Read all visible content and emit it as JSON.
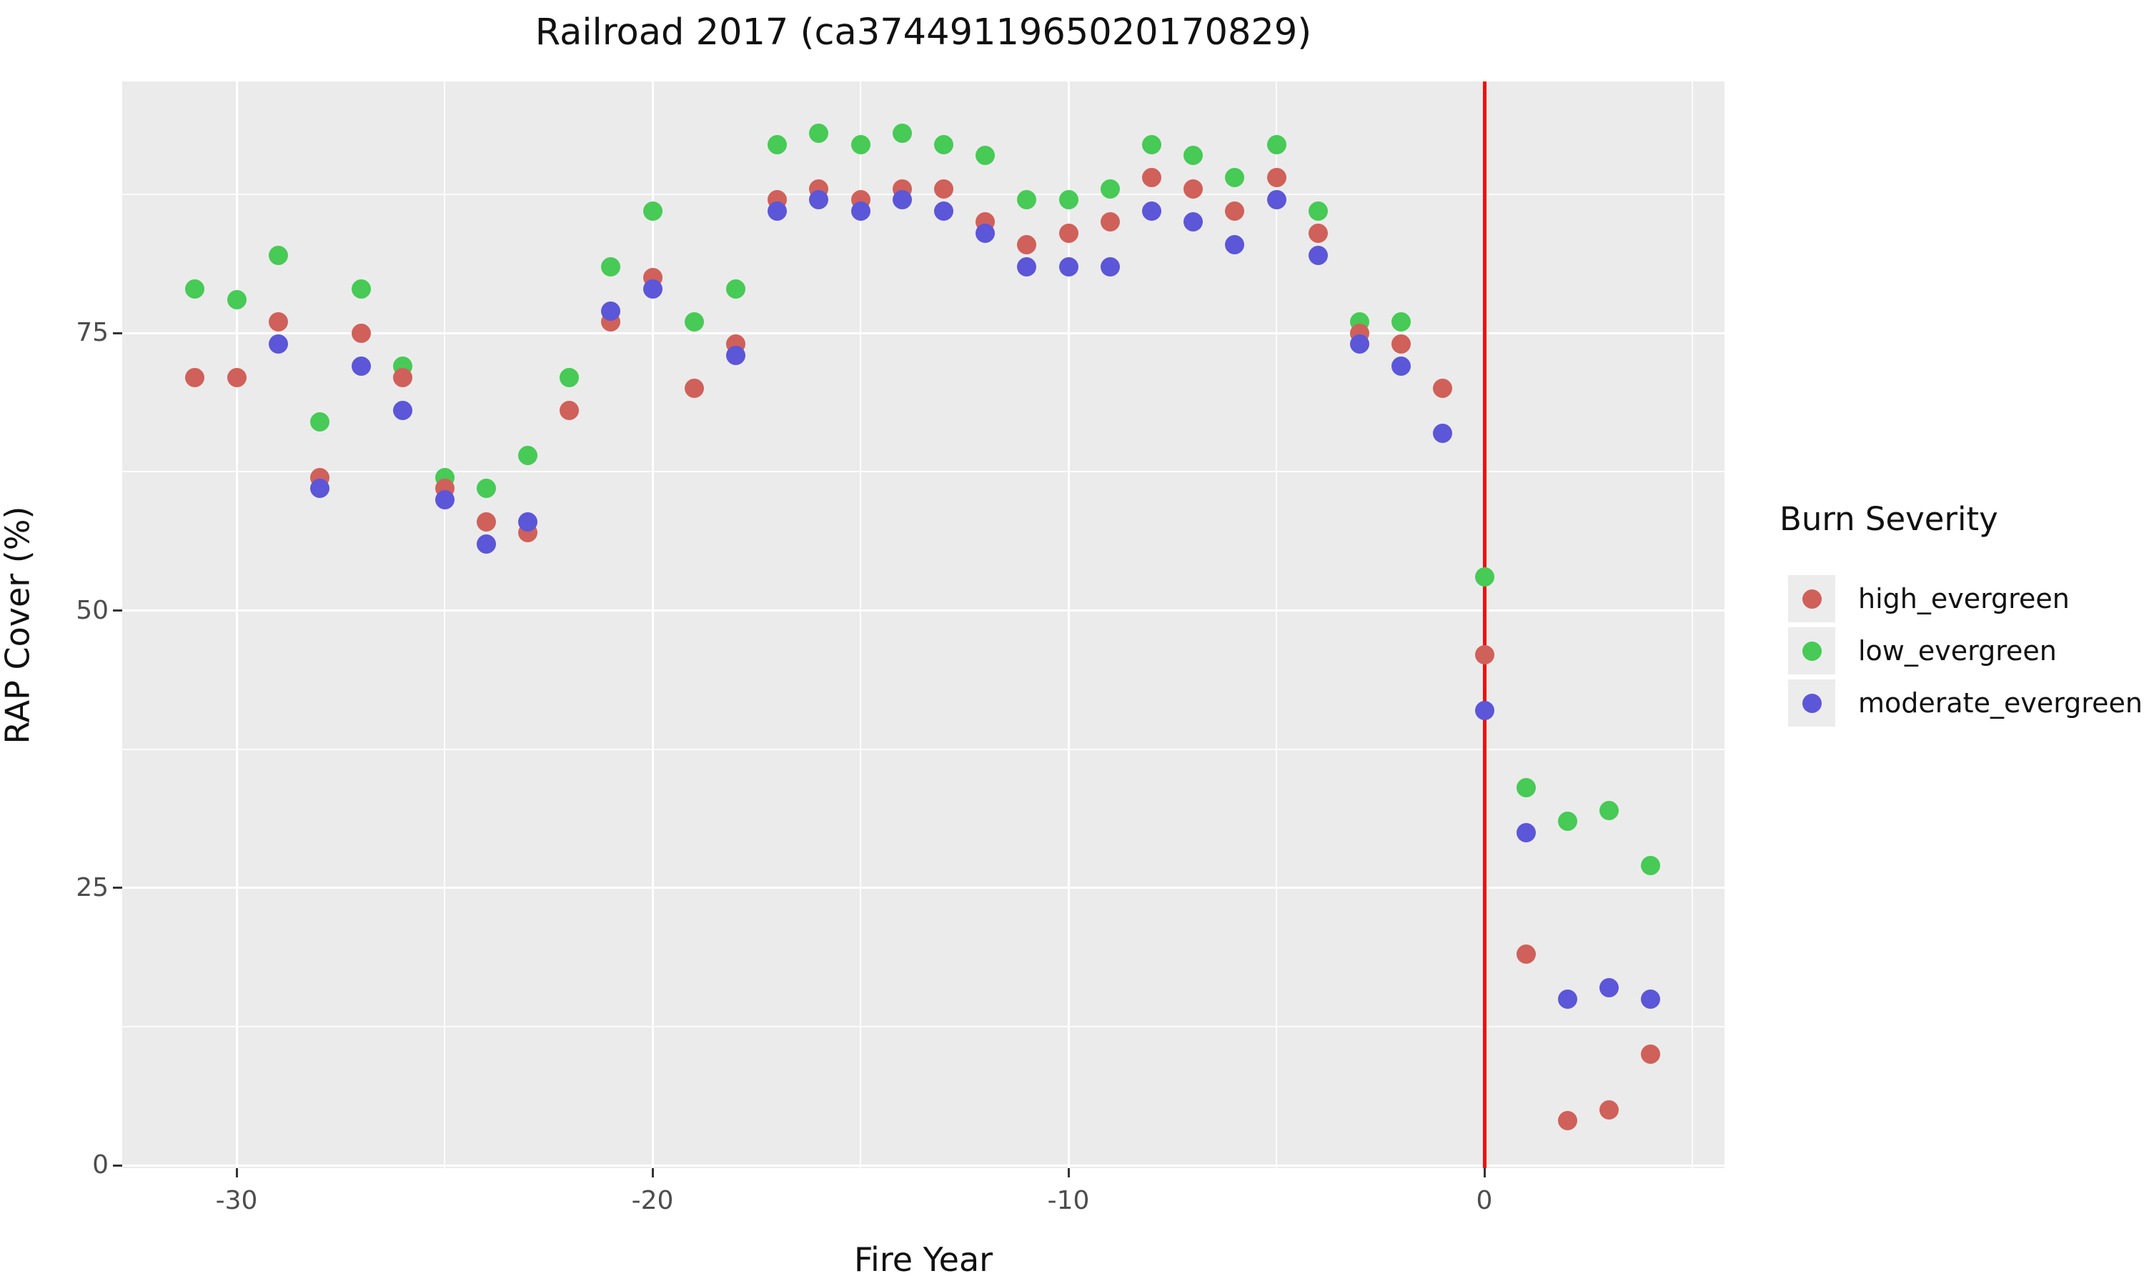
{
  "chart_data": {
    "type": "scatter",
    "title": "Railroad 2017 (ca3744911965020170829)",
    "xlabel": "Fire Year",
    "ylabel": "RAP Cover (%)",
    "xlim": [
      -32.8,
      5.8
    ],
    "ylim": [
      -0.3,
      97.7
    ],
    "x_major_ticks": [
      -30,
      -20,
      -10,
      0
    ],
    "x_tick_labels": [
      "-30",
      "-20",
      "-10",
      "0"
    ],
    "x_minor_gridlines": [
      -25,
      -15,
      -5,
      5
    ],
    "y_major_ticks": [
      0,
      25,
      50,
      75
    ],
    "y_tick_labels": [
      "0",
      "25",
      "50",
      "75"
    ],
    "y_minor_gridlines": [
      12.5,
      37.5,
      62.5,
      87.5
    ],
    "grid": "white major+minor gridlines on gray panel",
    "legend_position": "right",
    "vline": {
      "x": 0,
      "color": "#f20d0d"
    },
    "colors": {
      "panel_background": "#ebebeb",
      "gridline": "#ffffff",
      "tick_text": "#4d4d4d",
      "text": "#111111",
      "legend_key_background": "#ececec",
      "high_evergreen": "#d0605a",
      "low_evergreen": "#47ca56",
      "moderate_evergreen": "#5c56d8"
    },
    "legend": {
      "title": "Burn Severity",
      "items": [
        "high_evergreen",
        "low_evergreen",
        "moderate_evergreen"
      ]
    },
    "series": [
      {
        "name": "high_evergreen",
        "color": "#d0605a",
        "points": [
          [
            -31,
            71
          ],
          [
            -30,
            71
          ],
          [
            -29,
            76
          ],
          [
            -28,
            62
          ],
          [
            -27,
            75
          ],
          [
            -26,
            71
          ],
          [
            -25,
            61
          ],
          [
            -24,
            58
          ],
          [
            -23,
            57
          ],
          [
            -22,
            68
          ],
          [
            -21,
            76
          ],
          [
            -20,
            80
          ],
          [
            -19,
            70
          ],
          [
            -18,
            74
          ],
          [
            -17,
            87
          ],
          [
            -16,
            88
          ],
          [
            -15,
            87
          ],
          [
            -14,
            88
          ],
          [
            -13,
            88
          ],
          [
            -12,
            85
          ],
          [
            -11,
            83
          ],
          [
            -10,
            84
          ],
          [
            -9,
            85
          ],
          [
            -8,
            89
          ],
          [
            -7,
            88
          ],
          [
            -6,
            86
          ],
          [
            -5,
            89
          ],
          [
            -4,
            84
          ],
          [
            -3,
            75
          ],
          [
            -2,
            74
          ],
          [
            -1,
            70
          ],
          [
            0,
            46
          ],
          [
            1,
            19
          ],
          [
            2,
            4
          ],
          [
            3,
            5
          ],
          [
            4,
            10
          ]
        ]
      },
      {
        "name": "low_evergreen",
        "color": "#47ca56",
        "points": [
          [
            -31,
            79
          ],
          [
            -30,
            78
          ],
          [
            -29,
            82
          ],
          [
            -28,
            67
          ],
          [
            -27,
            79
          ],
          [
            -26,
            72
          ],
          [
            -25,
            62
          ],
          [
            -24,
            61
          ],
          [
            -23,
            64
          ],
          [
            -22,
            71
          ],
          [
            -21,
            81
          ],
          [
            -20,
            86
          ],
          [
            -19,
            76
          ],
          [
            -18,
            79
          ],
          [
            -17,
            92
          ],
          [
            -16,
            93
          ],
          [
            -15,
            92
          ],
          [
            -14,
            93
          ],
          [
            -13,
            92
          ],
          [
            -12,
            91
          ],
          [
            -11,
            87
          ],
          [
            -10,
            87
          ],
          [
            -9,
            88
          ],
          [
            -8,
            92
          ],
          [
            -7,
            91
          ],
          [
            -6,
            89
          ],
          [
            -5,
            92
          ],
          [
            -4,
            86
          ],
          [
            -3,
            76
          ],
          [
            -2,
            76
          ],
          [
            0,
            53
          ],
          [
            1,
            34
          ],
          [
            2,
            31
          ],
          [
            3,
            32
          ],
          [
            4,
            27
          ]
        ]
      },
      {
        "name": "moderate_evergreen",
        "color": "#5c56d8",
        "points": [
          [
            -29,
            74
          ],
          [
            -28,
            61
          ],
          [
            -27,
            72
          ],
          [
            -26,
            68
          ],
          [
            -25,
            60
          ],
          [
            -24,
            56
          ],
          [
            -23,
            58
          ],
          [
            -21,
            77
          ],
          [
            -20,
            79
          ],
          [
            -18,
            73
          ],
          [
            -17,
            86
          ],
          [
            -16,
            87
          ],
          [
            -15,
            86
          ],
          [
            -14,
            87
          ],
          [
            -13,
            86
          ],
          [
            -12,
            84
          ],
          [
            -11,
            81
          ],
          [
            -10,
            81
          ],
          [
            -9,
            81
          ],
          [
            -8,
            86
          ],
          [
            -7,
            85
          ],
          [
            -6,
            83
          ],
          [
            -5,
            87
          ],
          [
            -4,
            82
          ],
          [
            -3,
            74
          ],
          [
            -2,
            72
          ],
          [
            -1,
            66
          ],
          [
            0,
            41
          ],
          [
            1,
            30
          ],
          [
            2,
            15
          ],
          [
            3,
            16
          ],
          [
            4,
            15
          ]
        ]
      }
    ]
  }
}
